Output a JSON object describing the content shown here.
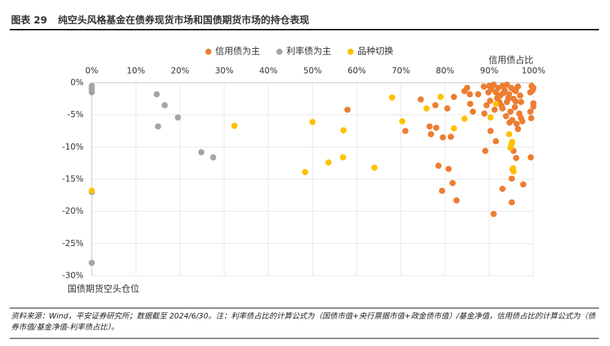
{
  "header": {
    "figure_no": "图表 29",
    "title": "纯空头风格基金在债券现货市场和国债期货市场的持仓表现"
  },
  "chart_data": {
    "type": "scatter",
    "xlabel": "信用债占比",
    "ylabel": "国债期货空头仓位",
    "xlim": [
      0,
      100
    ],
    "ylim": [
      -30,
      0
    ],
    "xticks": [
      {
        "value": 0,
        "label": "0%"
      },
      {
        "value": 10,
        "label": "10%"
      },
      {
        "value": 20,
        "label": "20%"
      },
      {
        "value": 30,
        "label": "30%"
      },
      {
        "value": 40,
        "label": "40%"
      },
      {
        "value": 50,
        "label": "50%"
      },
      {
        "value": 60,
        "label": "60%"
      },
      {
        "value": 70,
        "label": "70%"
      },
      {
        "value": 80,
        "label": "80%"
      },
      {
        "value": 90,
        "label": "90%"
      },
      {
        "value": 100,
        "label": "100%"
      }
    ],
    "yticks": [
      {
        "value": 0,
        "label": "0%"
      },
      {
        "value": -5,
        "label": "-5%"
      },
      {
        "value": -10,
        "label": "-10%"
      },
      {
        "value": -15,
        "label": "-15%"
      },
      {
        "value": -20,
        "label": "-20%"
      },
      {
        "value": -25,
        "label": "-25%"
      },
      {
        "value": -30,
        "label": "-30%"
      }
    ],
    "grid": true,
    "series": [
      {
        "name": "信用债为主",
        "color": "#ED7D31",
        "x": [
          57.9,
          71,
          74.5,
          76.5,
          76.8,
          78,
          77.8,
          78.5,
          79.3,
          79.5,
          80.5,
          80.8,
          81.3,
          81.7,
          82.6,
          82,
          84.4,
          85,
          85.6,
          85.7,
          86.3,
          87.5,
          88.9,
          89.1,
          89.4,
          90.3,
          91,
          91.5,
          93,
          95.1,
          95.1,
          95.3,
          97.7,
          99.4,
          96.1,
          95.5,
          96.5,
          97.5,
          97.2,
          99.5,
          99.3,
          100,
          100,
          99.8,
          99.6,
          100,
          99.3,
          90,
          90.5,
          91,
          91.5,
          92,
          92.5,
          93,
          93.5,
          94,
          94.5,
          95,
          95.5,
          96,
          96.5,
          97,
          94,
          93,
          92.3,
          94.8,
          95.8,
          96.8,
          93.8,
          95.2,
          96.2,
          91.8,
          90.2,
          89.8,
          88.8,
          93.2,
          94.3,
          95.6,
          97.2,
          96,
          92.8,
          94.6,
          91.2
        ],
        "values": [
          -4.2,
          -7.5,
          -2.6,
          -6.8,
          -8,
          -7,
          -3.5,
          -12.9,
          -16.8,
          -8.5,
          -4,
          -13.4,
          -8.4,
          -15.6,
          -18.3,
          -2.2,
          -1.3,
          -0.8,
          -1.8,
          -3.3,
          -4.5,
          -1.8,
          -4.8,
          -10.6,
          -3.5,
          -7.5,
          -20.4,
          -9.1,
          -16.5,
          -18.6,
          -14.9,
          -13.5,
          -15.8,
          -11.6,
          -11.7,
          -10.6,
          -7.2,
          -6,
          -5.5,
          -5.5,
          -4.5,
          -3.7,
          -3.2,
          -1.2,
          -0.5,
          -0.8,
          -1.5,
          -0.5,
          -1,
          -0.3,
          -1.5,
          -0.8,
          -2,
          -0.5,
          -1.2,
          -0.3,
          -1.8,
          -0.8,
          -2.5,
          -1.3,
          -0.6,
          -2,
          -3,
          -4,
          -3,
          -4.5,
          -3.8,
          -4.8,
          -5.2,
          -5.8,
          -6.4,
          -2.4,
          -2.8,
          -1.5,
          -0.6,
          -1.6,
          -2.4,
          -1.1,
          -3,
          -2.9,
          -3.6,
          -6.2,
          -4.2
        ]
      },
      {
        "name": "利率债为主",
        "color": "#A5A5A5",
        "x": [
          0,
          0,
          0,
          0,
          0,
          14.7,
          16.5,
          15,
          19.5,
          24.8,
          27.5
        ],
        "values": [
          -0.5,
          -1,
          -1.5,
          -17,
          -28,
          -1.8,
          -3.5,
          -6.8,
          -5.4,
          -10.8,
          -11.6
        ]
      },
      {
        "name": "品种切换",
        "color": "#FFC000",
        "x": [
          0,
          32.3,
          50,
          48.3,
          53.6,
          56.9,
          57,
          64,
          68,
          70.3,
          75.8,
          79,
          82,
          84.4,
          90.3,
          91.5,
          94.5,
          95,
          94.8,
          95.4,
          95.5,
          95.2
        ],
        "values": [
          -16.8,
          -6.7,
          -6.1,
          -13.9,
          -12.4,
          -11.6,
          -7.4,
          -13.2,
          -2.3,
          -6,
          -4,
          -2.2,
          -7.1,
          -5.6,
          -5.4,
          -3.3,
          -8,
          -9.6,
          -10.1,
          -13.3,
          -13.8,
          -9.2
        ]
      }
    ]
  },
  "footer": {
    "source": "资料来源：Wind，平安证券研究所；数据截至 2024/6/30。注：利率债占比的计算公式为（国债市值+央行票据市值+政金债市值）/基金净值，信用债占比的计算公式为（债券市值/基金净值-利率债占比）。"
  }
}
